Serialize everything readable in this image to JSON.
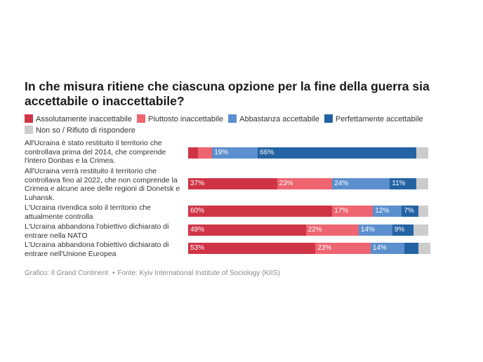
{
  "title": "In che misura ritiene che ciascuna opzione per la fine della guerra sia accettabile o inaccettabile?",
  "legend": [
    {
      "label": "Assolutamente inaccettabile",
      "color": "#cf3446"
    },
    {
      "label": "Piuttosto inaccettabile",
      "color": "#ee6470"
    },
    {
      "label": "Abbastanza accettabile",
      "color": "#5b8fcd"
    },
    {
      "label": "Perfettamente accettabile",
      "color": "#2463a3"
    },
    {
      "label": "Non so / Rifiuto di rispondere",
      "color": "#cccccc"
    }
  ],
  "footer": {
    "credit": "Grafico: Il Grand Continent",
    "source": "Fonte: Kyiv International Institute of Sociology (KIIS)"
  },
  "chart_data": {
    "type": "bar",
    "orientation": "horizontal",
    "stacked": true,
    "title": "In che misura ritiene che ciascuna opzione per la fine della guerra sia accettabile o inaccettabile?",
    "categories": [
      "All'Ucraina è stato restituito il territorio che controllava prima del 2014, che comprende l'intero Donbas e la Crimea.",
      "All'Ucraina verrà restituito il territorio che controllava fino al 2022, che non comprende la Crimea e alcune aree delle regioni di Donetsk e Luhansk.",
      "L'Ucraina rivendica solo il territorio che attualmente controlla",
      "L'Ucraina abbandona l'obiettivo dichiarato di entrare nella NATO",
      "L'Ucraina abbandona l'obiettivo dichiarato di entrare nell'Unione Europea"
    ],
    "series": [
      {
        "name": "Assolutamente inaccettabile",
        "values": [
          4,
          37,
          60,
          49,
          53
        ],
        "labels": [
          "",
          "37%",
          "60%",
          "49%",
          "53%"
        ]
      },
      {
        "name": "Piuttosto inaccettabile",
        "values": [
          6,
          23,
          17,
          22,
          23
        ],
        "labels": [
          "",
          "23%",
          "17%",
          "22%",
          "23%"
        ]
      },
      {
        "name": "Abbastanza accettabile",
        "values": [
          19,
          24,
          12,
          14,
          14
        ],
        "labels": [
          "19%",
          "24%",
          "12%",
          "14%",
          "14%"
        ]
      },
      {
        "name": "Perfettamente accettabile",
        "values": [
          66,
          11,
          7,
          9,
          6
        ],
        "labels": [
          "66%",
          "11%",
          "7%",
          "9%",
          ""
        ]
      },
      {
        "name": "Non so / Rifiuto di rispondere",
        "values": [
          5,
          5,
          4,
          6,
          5
        ],
        "labels": [
          "",
          "",
          "",
          "",
          ""
        ]
      }
    ],
    "xlim": [
      0,
      100
    ]
  }
}
